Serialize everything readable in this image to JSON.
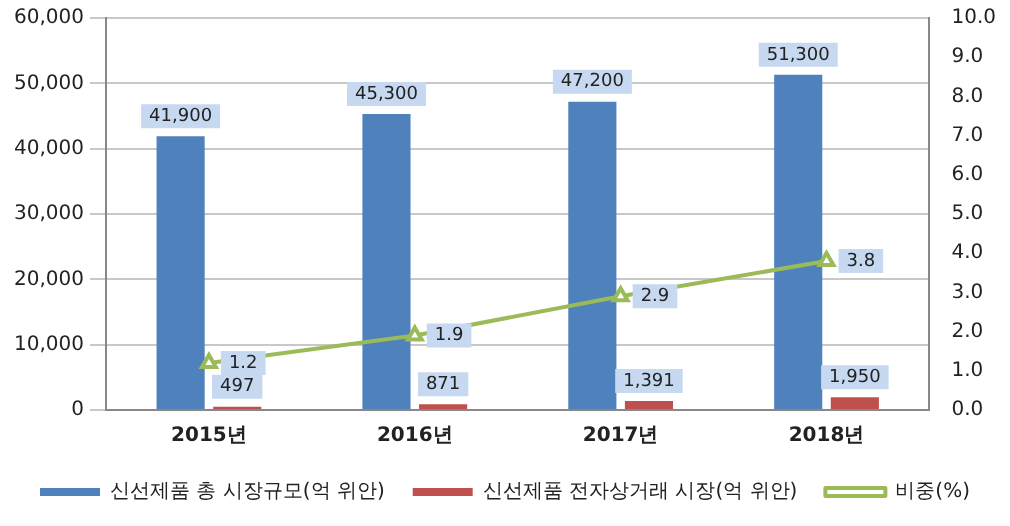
{
  "chart_data": {
    "type": "bar",
    "categories": [
      "2015년",
      "2016년",
      "2017년",
      "2018년"
    ],
    "series": [
      {
        "name": "신선제품 총 시장규모(억 위안)",
        "color": "#4f81bd",
        "values": [
          41900,
          45300,
          47200,
          51300
        ],
        "value_labels": [
          "41,900",
          "45,300",
          "47,200",
          "51,300"
        ]
      },
      {
        "name": "신선제품 전자상거래 시장(억 위안)",
        "color": "#c0504d",
        "values": [
          497,
          871,
          1391,
          1950
        ],
        "value_labels": [
          "497",
          "871",
          "1,391",
          "1,950"
        ]
      },
      {
        "name": "비중(%)",
        "type": "line",
        "axis": "y2",
        "color": "#9bbb59",
        "marker": "triangle",
        "values": [
          1.2,
          1.9,
          2.9,
          3.8
        ],
        "value_labels": [
          "1.2",
          "1.9",
          "2.9",
          "3.8"
        ]
      }
    ],
    "ylim": [
      0,
      60000
    ],
    "yticks": [
      {
        "value": 0,
        "label": "0"
      },
      {
        "value": 10000,
        "label": "10,000"
      },
      {
        "value": 20000,
        "label": "20,000"
      },
      {
        "value": 30000,
        "label": "30,000"
      },
      {
        "value": 40000,
        "label": "40,000"
      },
      {
        "value": 50000,
        "label": "50,000"
      },
      {
        "value": 60000,
        "label": "60,000"
      }
    ],
    "y2lim": [
      0,
      10
    ],
    "y2ticks": [
      {
        "value": 0,
        "label": "0.0"
      },
      {
        "value": 1,
        "label": "1.0"
      },
      {
        "value": 2,
        "label": "2.0"
      },
      {
        "value": 3,
        "label": "3.0"
      },
      {
        "value": 4,
        "label": "4.0"
      },
      {
        "value": 5,
        "label": "5.0"
      },
      {
        "value": 6,
        "label": "6.0"
      },
      {
        "value": 7,
        "label": "7.0"
      },
      {
        "value": 8,
        "label": "8.0"
      },
      {
        "value": 9,
        "label": "9.0"
      },
      {
        "value": 10,
        "label": "10.0"
      }
    ],
    "grid": "y",
    "legend": "bottom"
  }
}
